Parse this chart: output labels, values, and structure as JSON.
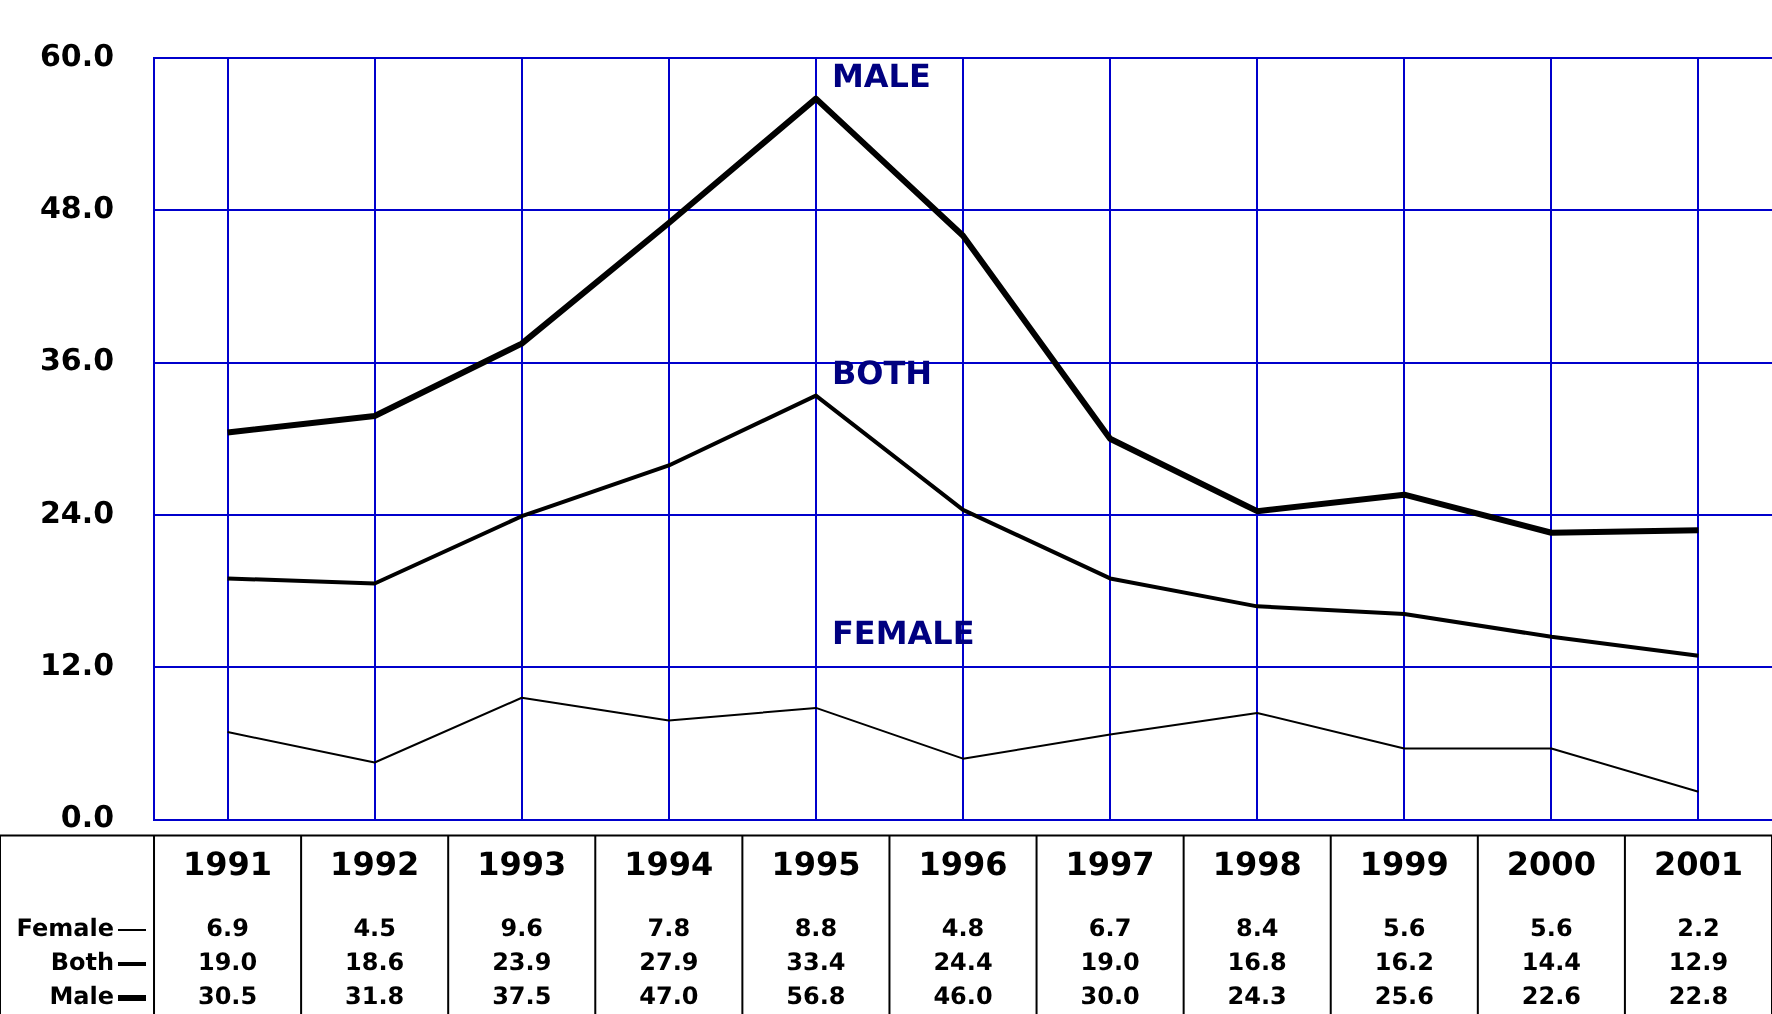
{
  "chart_data": {
    "type": "line",
    "categories": [
      "1991",
      "1992",
      "1993",
      "1994",
      "1995",
      "1996",
      "1997",
      "1998",
      "1999",
      "2000",
      "2001"
    ],
    "series": [
      {
        "name": "Female",
        "color": "#000000",
        "values": [
          6.9,
          4.5,
          9.6,
          7.8,
          8.8,
          4.8,
          6.7,
          8.4,
          5.6,
          5.6,
          2.2
        ],
        "value_labels": [
          "6.9",
          "4.5",
          "9.6",
          "7.8",
          "8.8",
          "4.8",
          "6.7",
          "8.4",
          "5.6",
          "5.6",
          "2.2"
        ]
      },
      {
        "name": "Both",
        "color": "#000000",
        "values": [
          19.0,
          18.6,
          23.9,
          27.9,
          33.4,
          24.4,
          19.0,
          16.8,
          16.2,
          14.4,
          12.9
        ],
        "value_labels": [
          "19.0",
          "18.6",
          "23.9",
          "27.9",
          "33.4",
          "24.4",
          "19.0",
          "16.8",
          "16.2",
          "14.4",
          "12.9"
        ]
      },
      {
        "name": "Male",
        "color": "#000000",
        "values": [
          30.5,
          31.8,
          37.5,
          47.0,
          56.8,
          46.0,
          30.0,
          24.3,
          25.6,
          22.6,
          22.8
        ],
        "value_labels": [
          "30.5",
          "31.8",
          "37.5",
          "47.0",
          "56.8",
          "46.0",
          "30.0",
          "24.3",
          "25.6",
          "22.6",
          "22.8"
        ]
      }
    ],
    "ylim": [
      0,
      60
    ],
    "yticks": [
      {
        "value": 0,
        "label": "0.0"
      },
      {
        "value": 12,
        "label": "12.0"
      },
      {
        "value": 24,
        "label": "24.0"
      },
      {
        "value": 36,
        "label": "36.0"
      },
      {
        "value": 48,
        "label": "48.0"
      },
      {
        "value": 60,
        "label": "60.0"
      }
    ],
    "grid": true,
    "legend": "bottom",
    "marker": "none",
    "line_style": "solid",
    "annotations": [
      "MALE",
      "BOTH",
      "FEMALE"
    ]
  }
}
